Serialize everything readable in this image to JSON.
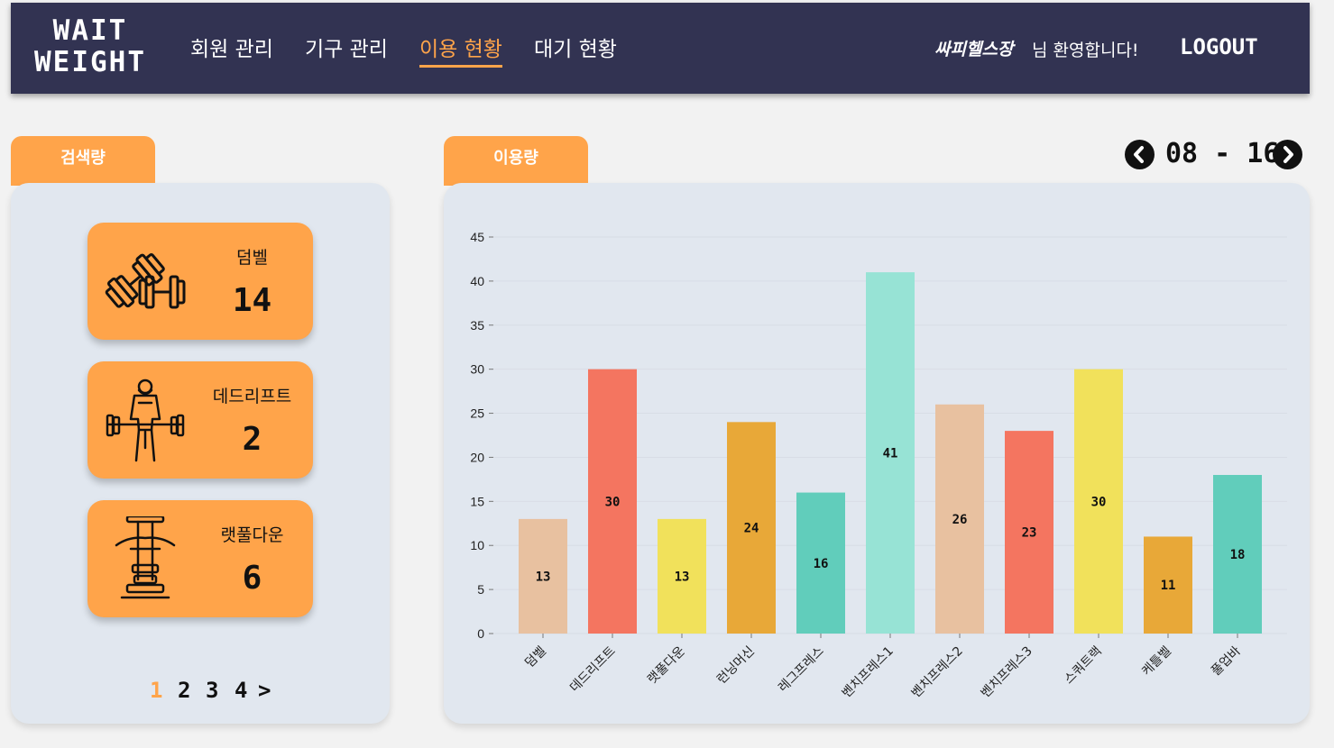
{
  "header": {
    "logo_line1": "WAIT",
    "logo_line2": "WEIGHT",
    "nav": [
      "회원 관리",
      "기구 관리",
      "이용 현황",
      "대기 현황"
    ],
    "active_nav": "이용 현황",
    "gym_name": "싸피헬스장",
    "welcome": "님 환영합니다!",
    "logout": "LOGOUT"
  },
  "search_panel": {
    "tab_label": "검색량",
    "cards": [
      {
        "name": "덤벨",
        "count": "14",
        "icon": "dumbbell-icon"
      },
      {
        "name": "데드리프트",
        "count": "2",
        "icon": "deadlift-icon"
      },
      {
        "name": "랫풀다운",
        "count": "6",
        "icon": "lat-pulldown-icon"
      }
    ],
    "pages": [
      "1",
      "2",
      "3",
      "4"
    ],
    "next": ">",
    "current_page": "1"
  },
  "usage_panel": {
    "tab_label": "이용량",
    "date_range": "08 - 16"
  },
  "colors": {
    "navy": "#323352",
    "orange": "#ffa44a",
    "panel_bg": "#e1e7ef"
  },
  "chart_data": {
    "type": "bar",
    "categories": [
      "덤벨",
      "데드리프트",
      "랫풀다운",
      "런닝머신",
      "레그프레스",
      "벤치프레스1",
      "벤치프레스2",
      "벤치프레스3",
      "스쿼트랙",
      "케틀벨",
      "풀업바"
    ],
    "values": [
      13,
      30,
      13,
      24,
      16,
      41,
      26,
      23,
      30,
      11,
      18
    ],
    "bar_colors": [
      "#e8c1a0",
      "#f47560",
      "#f1e15b",
      "#e8a838",
      "#61cdbb",
      "#97e3d5",
      "#e8c1a0",
      "#f47560",
      "#f1e15b",
      "#e8a838",
      "#61cdbb"
    ],
    "yticks": [
      0,
      5,
      10,
      15,
      20,
      25,
      30,
      35,
      40,
      45
    ],
    "ylim": [
      0,
      45
    ],
    "xlabel": "",
    "ylabel": "",
    "grid": true,
    "data_labels": true
  }
}
